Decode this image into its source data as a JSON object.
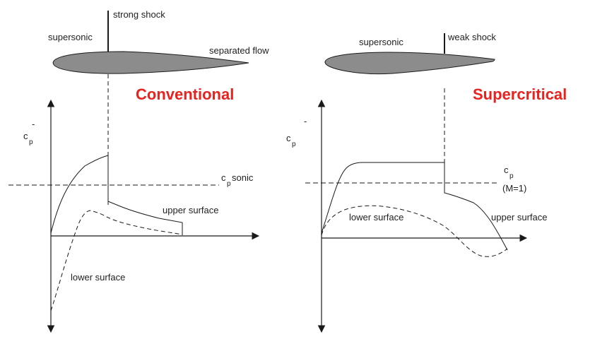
{
  "colors": {
    "title": "#e8231f",
    "line": "#1a1a1a",
    "airfoil_fill": "#8c8c8c"
  },
  "conventional": {
    "title": "Conventional",
    "airfoil_labels": {
      "supersonic": "supersonic",
      "shock": "strong shock",
      "separated": "separated flow"
    },
    "axis": {
      "sign": "-",
      "ylabel_main": "c",
      "ylabel_sub": "p"
    },
    "sonic_label": {
      "main": "c",
      "sub": "p",
      "suffix": " sonic"
    },
    "curve_labels": {
      "upper": "upper surface",
      "lower": "lower surface"
    }
  },
  "supercritical": {
    "title": "Supercritical",
    "airfoil_labels": {
      "supersonic": "supersonic",
      "shock": "weak shock"
    },
    "axis": {
      "sign": "-",
      "ylabel_main": "c",
      "ylabel_sub": "p"
    },
    "sonic_label": {
      "main": "c",
      "sub": "p",
      "line2": "(M=1)"
    },
    "curve_labels": {
      "upper": "upper surface",
      "lower": "lower surface"
    }
  }
}
